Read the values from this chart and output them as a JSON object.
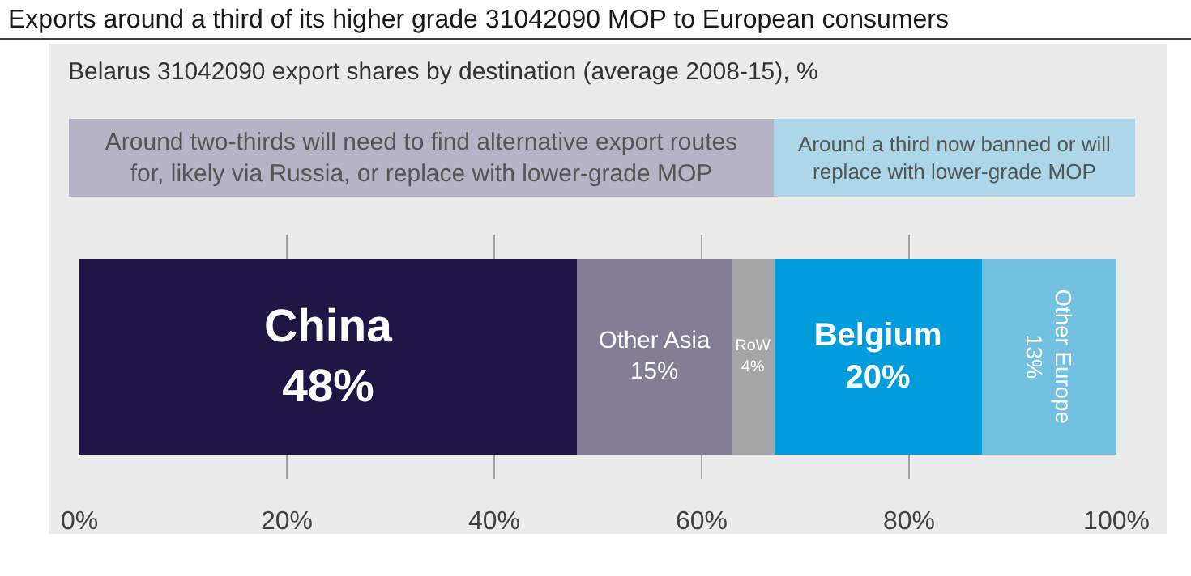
{
  "chart_data": {
    "type": "bar",
    "orientation": "horizontal",
    "stacked": true,
    "title": "Exports around a third of its higher grade 31042090 MOP to European consumers",
    "subtitle": "Belarus 31042090 export shares by destination (average 2008-15), %",
    "annotations": [
      "Around two-thirds will need to find alternative export routes for, likely via Russia, or replace with lower-grade MOP",
      "Around a third now banned or will replace with lower-grade MOP"
    ],
    "categories": [
      null
    ],
    "series": [
      {
        "name": "China",
        "color": "#1f1646",
        "values": [
          48
        ],
        "value_labels": [
          "48%"
        ]
      },
      {
        "name": "Other Asia",
        "color": "#837d96",
        "values": [
          15
        ],
        "value_labels": [
          "15%"
        ]
      },
      {
        "name": "RoW",
        "color": "#a6a6a6",
        "values": [
          4
        ],
        "value_labels": [
          "4%"
        ]
      },
      {
        "name": "Belgium",
        "color": "#009cdb",
        "values": [
          20
        ],
        "value_labels": [
          "20%"
        ]
      },
      {
        "name": "Other Europe",
        "color": "#72c1e2",
        "values": [
          13
        ],
        "value_labels": [
          "13%"
        ]
      }
    ],
    "xlim": [
      0,
      100
    ],
    "xticks": [
      {
        "value": 0,
        "label": "0%"
      },
      {
        "value": 20,
        "label": "20%"
      },
      {
        "value": 40,
        "label": "40%"
      },
      {
        "value": 60,
        "label": "60%"
      },
      {
        "value": 80,
        "label": "80%"
      },
      {
        "value": 100,
        "label": "100%"
      }
    ],
    "grid": "x",
    "legend": false
  }
}
